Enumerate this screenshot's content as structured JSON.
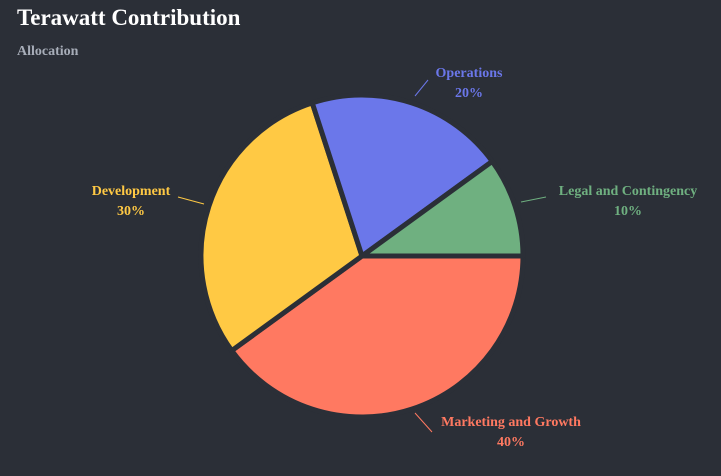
{
  "header": {
    "title": "Terawatt Contribution",
    "subtitle": "Allocation"
  },
  "chart_data": {
    "type": "pie",
    "title": "Terawatt Contribution",
    "subtitle": "Allocation",
    "start_angle_deg": 0,
    "direction": "clockwise",
    "slices": [
      {
        "label": "Marketing and Growth",
        "value": 40,
        "value_label": "40%",
        "color": "#ff7961"
      },
      {
        "label": "Development",
        "value": 30,
        "value_label": "30%",
        "color": "#ffc944"
      },
      {
        "label": "Operations",
        "value": 20,
        "value_label": "20%",
        "color": "#6b77ea"
      },
      {
        "label": "Legal and Contingency",
        "value": 10,
        "value_label": "10%",
        "color": "#6fb080"
      }
    ],
    "background": "#2b2f37",
    "separator_color": "#2b2f37"
  }
}
